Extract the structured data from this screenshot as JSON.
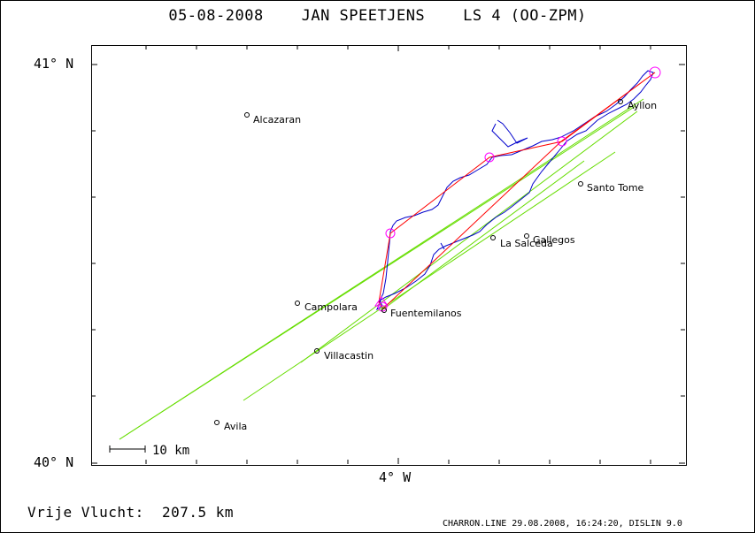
{
  "title": "05-08-2008    JAN SPEETJENS    LS 4 (OO-ZPM)",
  "axes": {
    "lat_top_label": "41° N",
    "lat_bottom_label": "40° N",
    "lon_label": "4° W"
  },
  "scale_bar": {
    "label": "10 km"
  },
  "flight_distance": "Vrije Vlucht:  207.5 km",
  "credits": "CHARRON.LINE 29.08.2008, 16:24:20, DISLIN 9.0",
  "colors": {
    "task_line": "#ff0000",
    "turnpoint_circle": "#ff00ff",
    "track": "#0000cc",
    "sector_lines": "#66dd00",
    "frame": "#000000"
  },
  "places": [
    {
      "name": "Alcazaran"
    },
    {
      "name": "Ayllon"
    },
    {
      "name": "Santo Tome"
    },
    {
      "name": "Gallegos"
    },
    {
      "name": "La Salceda"
    },
    {
      "name": "Campolara"
    },
    {
      "name": "Fuentemilanos"
    },
    {
      "name": "Villacastin"
    },
    {
      "name": "Avila"
    }
  ]
}
